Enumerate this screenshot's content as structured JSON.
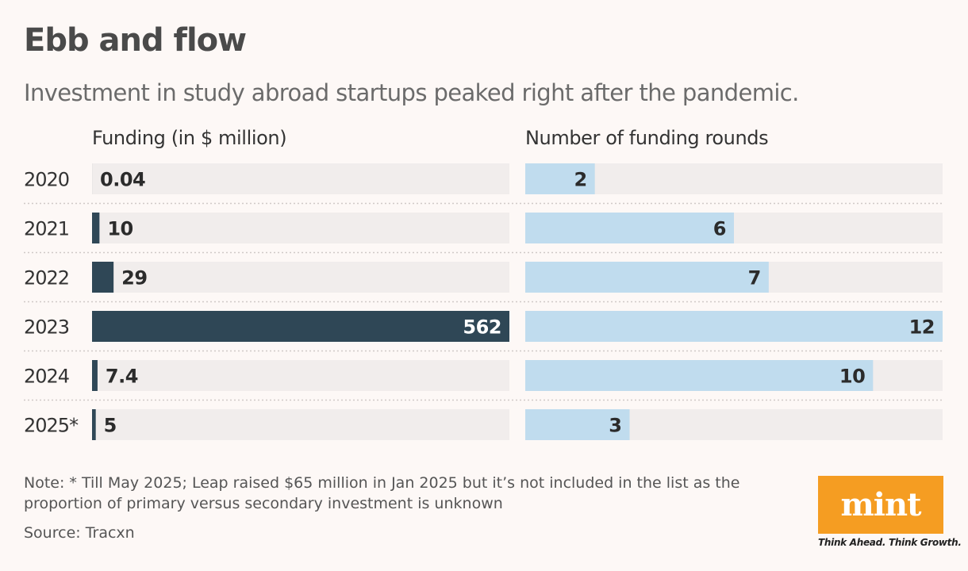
{
  "title": "Ebb and flow",
  "subtitle": "Investment in study abroad startups peaked right after the pandemic.",
  "note": "Note: * Till May 2025; Leap raised $65 million in Jan 2025 but it’s not included in the list as the proportion of primary versus secondary investment is unknown",
  "source": "Source: Tracxn",
  "logo": {
    "word": "mint",
    "tagline": "Think Ahead. Think Growth."
  },
  "colors": {
    "funding_bar": "#2f4756",
    "rounds_bar": "#c0dcee",
    "track": "#f1edec",
    "brand": "#f59d22",
    "value_light": "#ffffff",
    "value_dark": "#2b2b2b"
  },
  "chart_data": [
    {
      "type": "bar",
      "orientation": "horizontal",
      "title": "Funding (in $ million)",
      "categories": [
        "2020",
        "2021",
        "2022",
        "2023",
        "2024",
        "2025*"
      ],
      "values": [
        0.04,
        10,
        29,
        562,
        7.4,
        5
      ],
      "value_labels": [
        "0.04",
        "10",
        "29",
        "562",
        "7.4",
        "5"
      ],
      "xlim": [
        0,
        562
      ]
    },
    {
      "type": "bar",
      "orientation": "horizontal",
      "title": "Number of funding rounds",
      "categories": [
        "2020",
        "2021",
        "2022",
        "2023",
        "2024",
        "2025*"
      ],
      "values": [
        2,
        6,
        7,
        12,
        10,
        3
      ],
      "value_labels": [
        "2",
        "6",
        "7",
        "12",
        "10",
        "3"
      ],
      "xlim": [
        0,
        12
      ]
    }
  ]
}
